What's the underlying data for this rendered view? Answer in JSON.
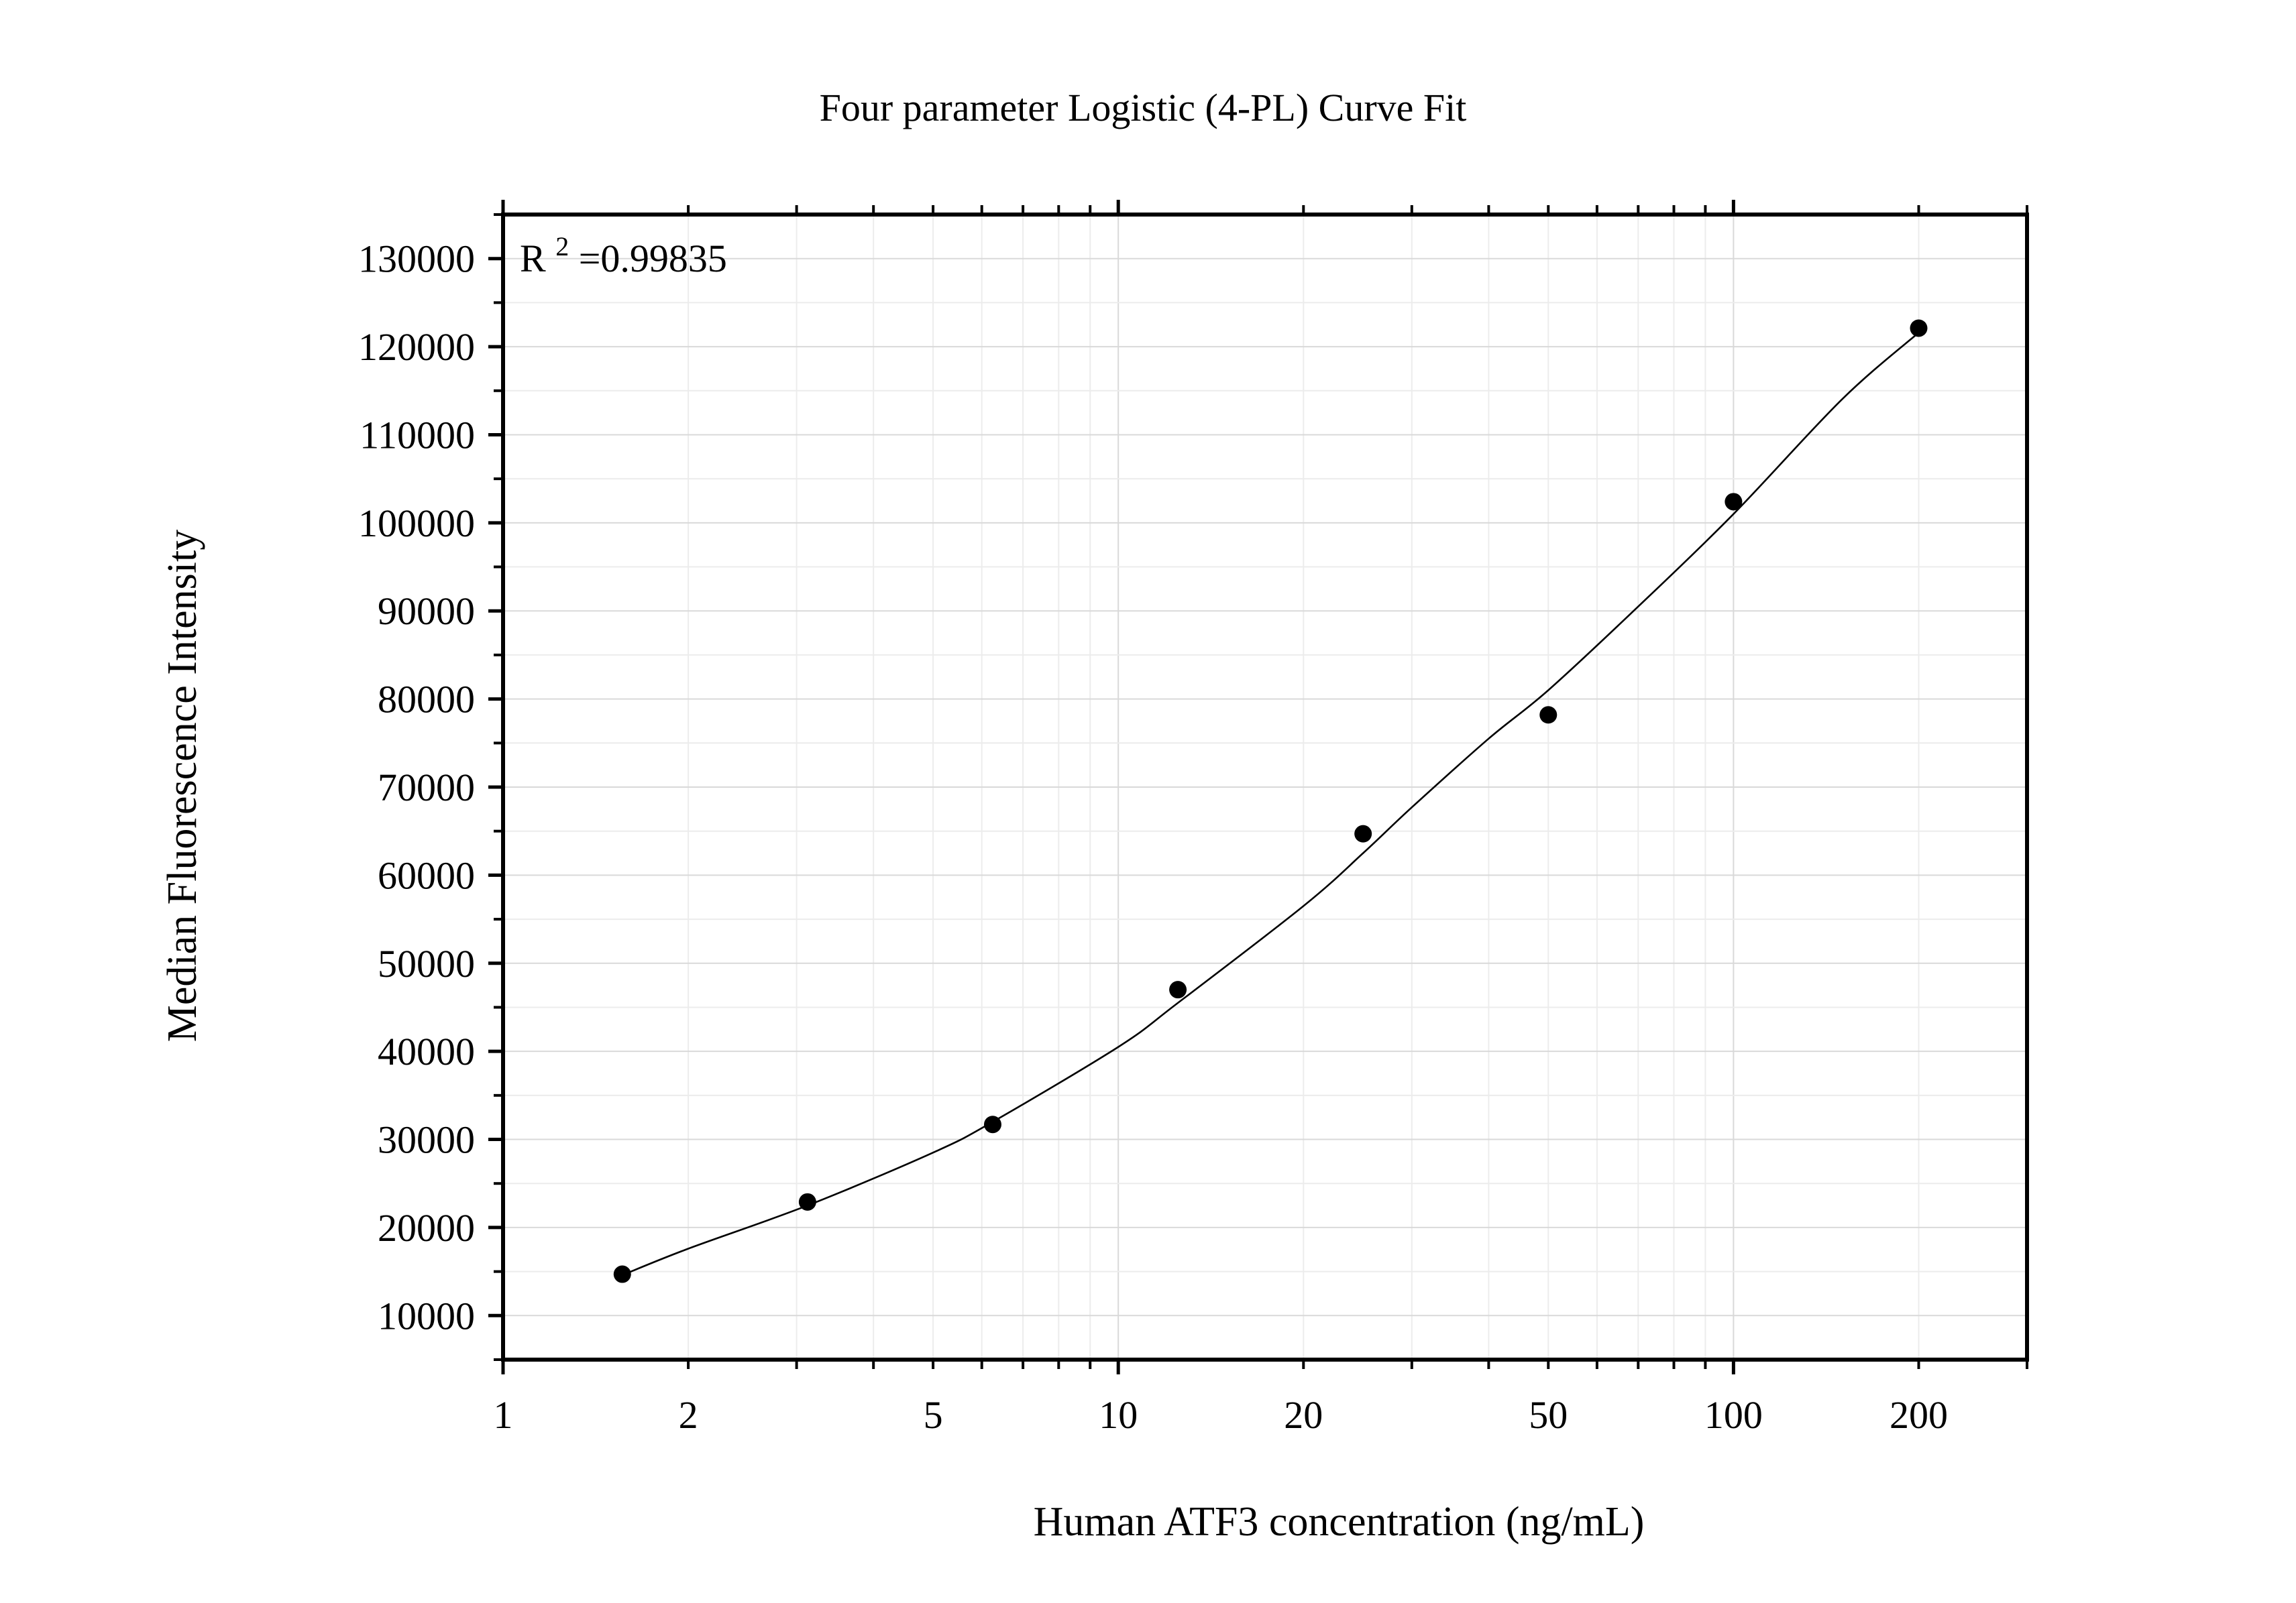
{
  "chart_data": {
    "type": "scatter",
    "title": "Four parameter Logistic (4-PL) Curve Fit",
    "xlabel": "Human ATF3 concentration (ng/mL)",
    "ylabel": "Median Fluorescence Intensity",
    "x_scale": "log",
    "xlim": [
      1,
      300
    ],
    "ylim": [
      5000,
      135000
    ],
    "grid": true,
    "x_ticks": [
      1,
      2,
      5,
      10,
      20,
      50,
      100,
      200
    ],
    "x_tick_labels": [
      "1",
      "2",
      "5",
      "10",
      "20",
      "50",
      "100",
      "200"
    ],
    "y_ticks": [
      10000,
      20000,
      30000,
      40000,
      50000,
      60000,
      70000,
      80000,
      90000,
      100000,
      110000,
      120000,
      130000
    ],
    "y_tick_labels": [
      "10000",
      "20000",
      "30000",
      "40000",
      "50000",
      "60000",
      "70000",
      "80000",
      "90000",
      "100000",
      "110000",
      "120000",
      "130000"
    ],
    "annotation": {
      "prefix": "R",
      "superscript": "2",
      "text": "=0.99835"
    },
    "series": [
      {
        "kind": "points",
        "x": [
          1.5625,
          3.125,
          6.25,
          12.5,
          25,
          50,
          100,
          200
        ],
        "y": [
          14700,
          22900,
          31700,
          47000,
          64700,
          78200,
          102400,
          122100
        ]
      },
      {
        "kind": "fit",
        "x": [
          1.5625,
          2,
          3.125,
          5,
          6.25,
          10,
          12.5,
          20,
          25,
          30,
          40,
          50,
          70,
          100,
          150,
          200
        ],
        "y": [
          14600,
          17600,
          22500,
          28500,
          32000,
          40500,
          45500,
          56500,
          62500,
          67700,
          75500,
          81000,
          90500,
          101000,
          114000,
          121600
        ]
      }
    ]
  }
}
